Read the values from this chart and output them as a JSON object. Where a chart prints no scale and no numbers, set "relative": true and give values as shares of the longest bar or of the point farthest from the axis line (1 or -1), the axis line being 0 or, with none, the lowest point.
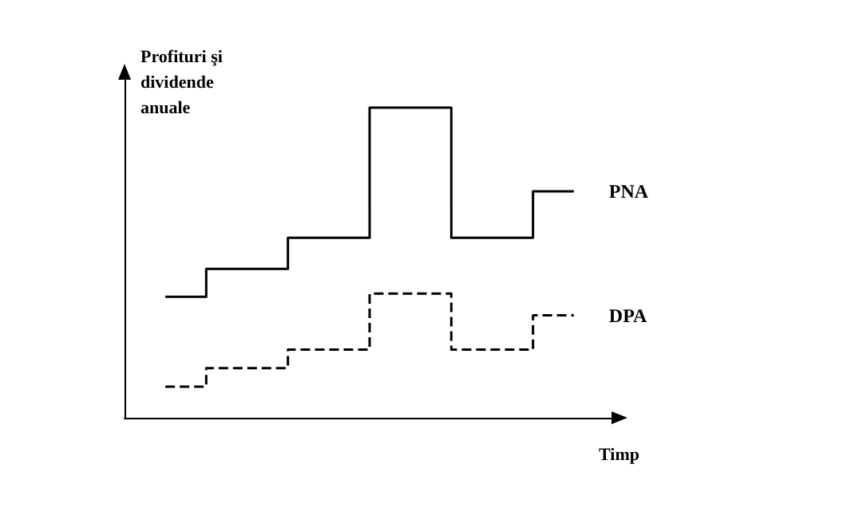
{
  "chart_data": {
    "type": "step",
    "ylabel": "Profituri şi dividende anuale",
    "xlabel": "Timp",
    "relative": true,
    "marker": "none",
    "categories": [
      null,
      null,
      null,
      null,
      null,
      null
    ],
    "series": [
      {
        "name": "PNA",
        "color": "#000000",
        "line_style": "solid",
        "values": [
          0.39,
          0.48,
          0.58,
          1,
          0.58,
          0.73
        ]
      },
      {
        "name": "DPA",
        "color": "#000000",
        "line_style": "dashed",
        "values": [
          0.1,
          0.16,
          0.22,
          0.4,
          0.22,
          0.33
        ]
      }
    ]
  }
}
